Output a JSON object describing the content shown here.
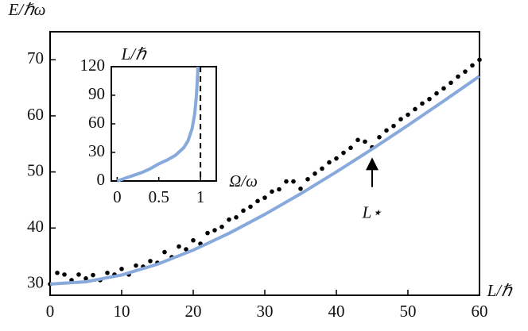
{
  "chart_data": [
    {
      "type": "scatter",
      "x_label": "L/ℏ",
      "y_label": "E/ℏω",
      "xlim": [
        0,
        60
      ],
      "ylim": [
        28,
        75
      ],
      "xticks": [
        0,
        10,
        20,
        30,
        40,
        50,
        60
      ],
      "yticks": [
        30,
        40,
        50,
        60,
        70
      ],
      "series": [
        {
          "mode": "markers",
          "color": "#000000",
          "x": [
            0,
            1,
            2,
            3,
            4,
            5,
            6,
            7,
            8,
            9,
            10,
            11,
            12,
            13,
            14,
            15,
            16,
            17,
            18,
            19,
            20,
            21,
            22,
            23,
            24,
            25,
            26,
            27,
            28,
            29,
            30,
            31,
            32,
            33,
            34,
            35,
            36,
            37,
            38,
            39,
            40,
            41,
            42,
            43,
            44,
            45,
            46,
            47,
            48,
            49,
            50,
            51,
            52,
            53,
            54,
            55,
            56,
            57,
            58,
            59,
            60
          ],
          "values": [
            30.0,
            32.0,
            31.7,
            30.7,
            31.7,
            31.0,
            31.6,
            30.7,
            32.0,
            31.7,
            32.7,
            31.7,
            33.3,
            33.1,
            34.1,
            33.8,
            35.7,
            34.8,
            36.7,
            36.2,
            37.8,
            37.2,
            39.1,
            39.6,
            40.2,
            41.5,
            41.9,
            43.1,
            43.8,
            44.8,
            45.4,
            46.5,
            46.9,
            48.3,
            48.3,
            47.0,
            48.7,
            49.7,
            50.6,
            51.7,
            52.4,
            53.4,
            54.3,
            55.7,
            55.4,
            54.4,
            56.2,
            57.4,
            58.2,
            59.4,
            60.2,
            61.2,
            62.2,
            63.0,
            64.0,
            64.9,
            65.9,
            67.0,
            67.9,
            69.0,
            70.0
          ]
        },
        {
          "mode": "line",
          "color": "#88a9dc",
          "x": [
            0,
            5,
            10,
            15,
            20,
            25,
            30,
            35,
            40,
            45,
            50,
            55,
            60
          ],
          "values": [
            30,
            30.41,
            31.62,
            33.54,
            36.06,
            39.05,
            42.43,
            46.1,
            50,
            54.08,
            58.31,
            62.65,
            67.08
          ]
        }
      ],
      "annotation": {
        "text": "L⋆",
        "x": 45,
        "y_from": 47.3,
        "y_to": 52.3
      }
    },
    {
      "type": "line",
      "x_label": "Ω/ω",
      "y_label": "L/ℏ",
      "xlim": [
        -0.07,
        1.19
      ],
      "ylim": [
        0,
        120
      ],
      "xticks": [
        0,
        0.5,
        1
      ],
      "yticks": [
        0,
        30,
        60,
        90,
        120
      ],
      "series": [
        {
          "mode": "line",
          "color": "#88a9dc",
          "x": [
            0,
            0.1,
            0.2,
            0.3,
            0.4,
            0.5,
            0.6,
            0.7,
            0.8,
            0.85,
            0.9,
            0.93,
            0.95,
            0.96,
            0.97
          ],
          "values": [
            0,
            3,
            6,
            9,
            13,
            18,
            22,
            27,
            35,
            42,
            55,
            70,
            88,
            102,
            120
          ]
        }
      ],
      "vline": 1
    }
  ]
}
